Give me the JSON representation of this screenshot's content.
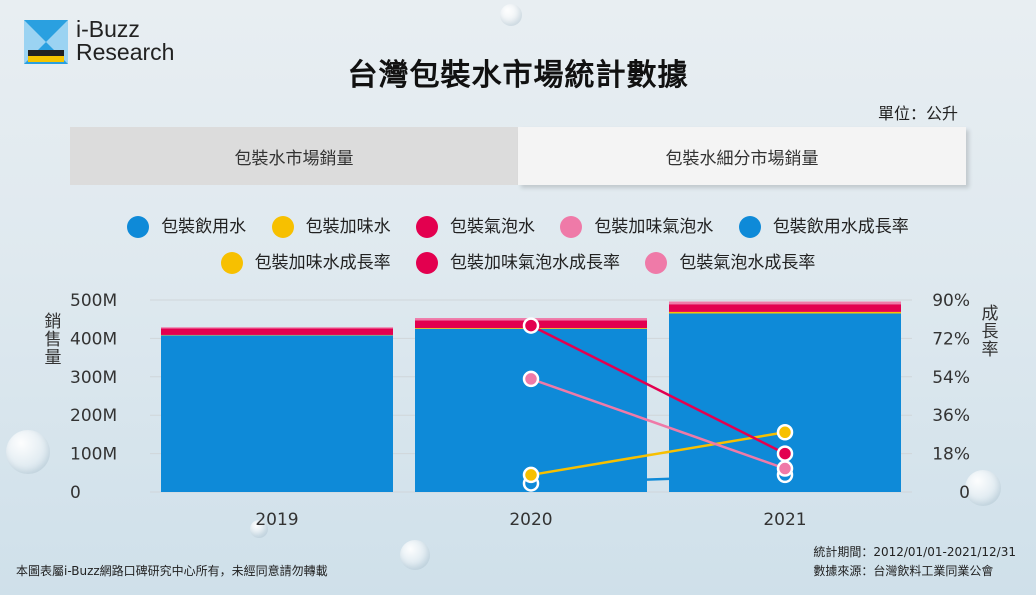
{
  "logo": {
    "line1": "i-Buzz",
    "line2": "Research"
  },
  "title": "台灣包裝水市場統計數據",
  "unit": "單位：公升",
  "tabs": [
    {
      "label": "包裝水市場銷量",
      "active": false
    },
    {
      "label": "包裝水細分市場銷量",
      "active": true
    }
  ],
  "footer": {
    "copyright": "本圖表屬i-Buzz網路口碑研究中心所有，未經同意請勿轉載",
    "period": "統計期間：2012/01/01-2021/12/31",
    "source": "數據來源：台灣飲料工業同業公會"
  },
  "chart_data": {
    "type": "bar",
    "stacked": true,
    "categories": [
      "2019",
      "2020",
      "2021"
    ],
    "ylabel": "銷售量",
    "ylabel2": "成長率",
    "ylim": [
      0,
      500
    ],
    "y_ticks": [
      "0",
      "100M",
      "200M",
      "300M",
      "400M",
      "500M"
    ],
    "y2lim": [
      0,
      90
    ],
    "y2_ticks": [
      "0",
      "18%",
      "36%",
      "54%",
      "72%",
      "90%"
    ],
    "grid": true,
    "legend_position": "top",
    "series": [
      {
        "name": "包裝飲用水",
        "kind": "bar",
        "color": "#0e8ad8",
        "values": [
          408,
          425,
          465
        ]
      },
      {
        "name": "包裝加味水",
        "kind": "bar",
        "color": "#f7c000",
        "values": [
          1,
          2,
          4
        ]
      },
      {
        "name": "包裝氣泡水",
        "kind": "bar",
        "color": "#e3004f",
        "values": [
          17,
          20,
          20
        ]
      },
      {
        "name": "包裝加味氣泡水",
        "kind": "bar",
        "color": "#ef7aa8",
        "values": [
          3,
          6,
          7
        ]
      },
      {
        "name": "包裝飲用水成長率",
        "kind": "line",
        "color": "#0e8ad8",
        "values": [
          null,
          4,
          8
        ]
      },
      {
        "name": "包裝加味水成長率",
        "kind": "line",
        "color": "#f7c000",
        "values": [
          null,
          8,
          28
        ]
      },
      {
        "name": "包裝加味氣泡水成長率",
        "kind": "line",
        "color": "#e3004f",
        "values": [
          null,
          78,
          18
        ]
      },
      {
        "name": "包裝氣泡水成長率",
        "kind": "line",
        "color": "#ef7aa8",
        "values": [
          null,
          53,
          11
        ]
      }
    ]
  }
}
